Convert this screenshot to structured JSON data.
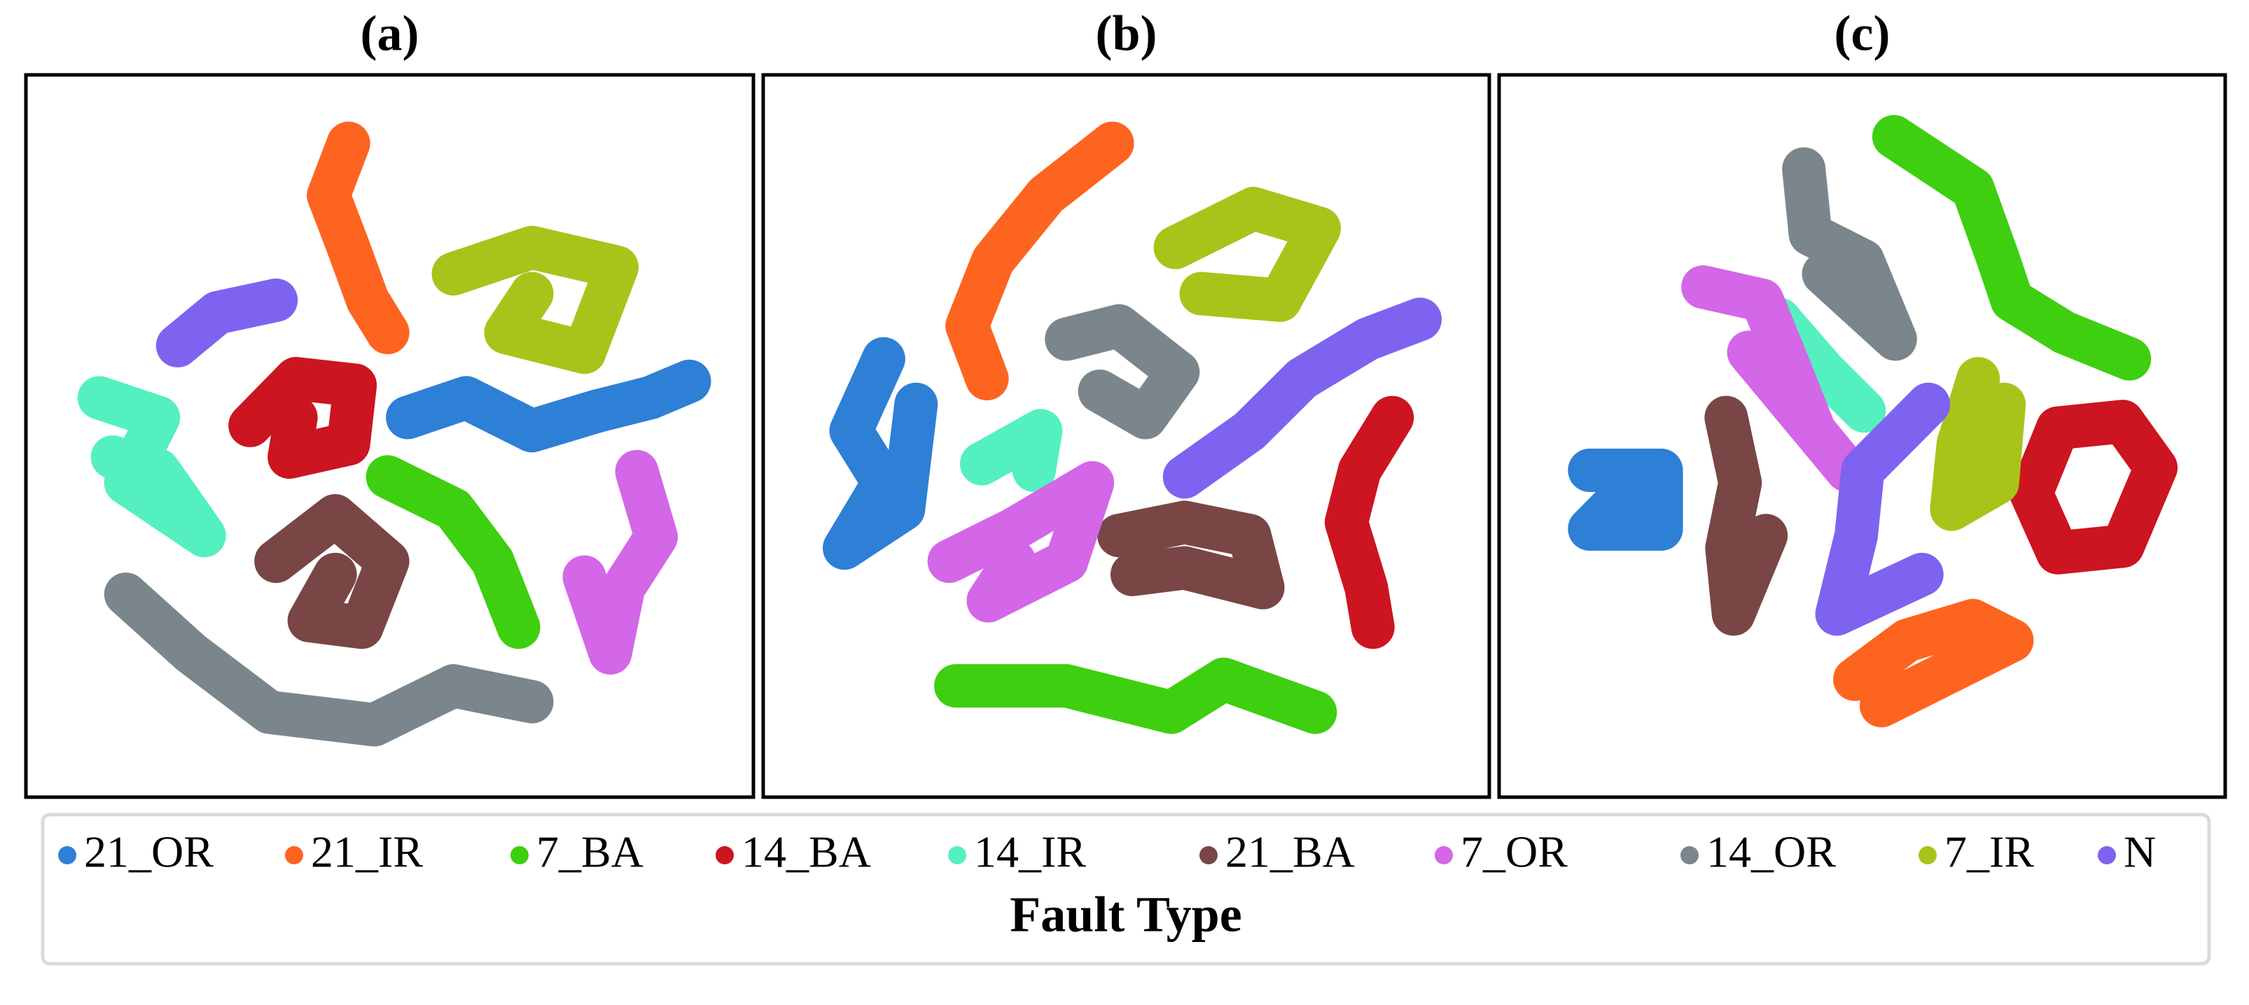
{
  "legend_title": "Fault Type",
  "chart_data": [
    {
      "type": "scatter",
      "title": "(a)",
      "xlim": [
        0,
        100
      ],
      "ylim": [
        0,
        100
      ],
      "series": [
        {
          "name": "21_OR",
          "color": "#2e7fd6",
          "x": [
            52.7,
            61.5,
            71.4,
            81.3,
            89.2,
            95.1
          ],
          "y": [
            52.8,
            55.8,
            50.8,
            53.8,
            55.8,
            58.3
          ]
        },
        {
          "name": "21_IR",
          "color": "#fd6420",
          "x": [
            43.8,
            40.8,
            43.8,
            46.7,
            49.7
          ],
          "y": [
            94.4,
            86.5,
            78.6,
            70.6,
            65.7
          ]
        },
        {
          "name": "7_BA",
          "color": "#3ecf10",
          "x": [
            49.7,
            59.6,
            65.5,
            69.4
          ],
          "y": [
            43.8,
            38.9,
            31.0,
            21.0
          ]
        },
        {
          "name": "14_BA",
          "color": "#cc1520",
          "x": [
            29.0,
            35.9,
            44.8,
            43.8,
            34.9,
            35.9
          ],
          "y": [
            51.6,
            58.7,
            57.7,
            48.8,
            46.8,
            52.8
          ]
        },
        {
          "name": "14_IR",
          "color": "#55f0c0",
          "x": [
            6.3,
            15.2,
            10.3,
            22.1,
            15.2,
            8.3
          ],
          "y": [
            55.8,
            52.8,
            42.9,
            34.9,
            44.8,
            46.8
          ]
        },
        {
          "name": "21_BA",
          "color": "#7a4545",
          "x": [
            32.9,
            41.8,
            49.7,
            45.8,
            37.9,
            41.8
          ],
          "y": [
            31.0,
            37.9,
            31.0,
            21.0,
            22.0,
            29.0
          ]
        },
        {
          "name": "7_OR",
          "color": "#d466e8",
          "x": [
            87.2,
            90.1,
            85.2,
            83.2,
            79.3
          ],
          "y": [
            44.6,
            34.7,
            27.0,
            17.1,
            28.6
          ]
        },
        {
          "name": "14_OR",
          "color": "#7b868c",
          "x": [
            10.3,
            20.1,
            31.9,
            47.7,
            59.6,
            71.4
          ],
          "y": [
            26.0,
            17.1,
            8.1,
            6.2,
            12.1,
            9.7
          ]
        },
        {
          "name": "7_IR",
          "color": "#a8c41a",
          "x": [
            59.6,
            71.4,
            84.2,
            79.3,
            67.5,
            71.4
          ],
          "y": [
            74.6,
            78.6,
            75.6,
            62.7,
            65.7,
            71.6
          ]
        },
        {
          "name": "N",
          "color": "#7e63f0",
          "x": [
            18.1,
            24.1,
            32.9
          ],
          "y": [
            63.7,
            68.7,
            70.6
          ]
        }
      ]
    },
    {
      "type": "scatter",
      "title": "(b)",
      "xlim": [
        0,
        100
      ],
      "ylim": [
        0,
        100
      ],
      "series": [
        {
          "name": "21_OR",
          "color": "#2e7fd6",
          "x": [
            13.4,
            8.5,
            13.4,
            7.5,
            16.4,
            18.3
          ],
          "y": [
            61.7,
            50.8,
            42.9,
            33.0,
            38.9,
            54.8
          ]
        },
        {
          "name": "21_IR",
          "color": "#fd6420",
          "x": [
            47.9,
            37.9,
            29.9,
            26.0,
            29.0
          ],
          "y": [
            94.4,
            86.5,
            76.6,
            66.7,
            58.7
          ]
        },
        {
          "name": "7_BA",
          "color": "#3ecf10",
          "x": [
            24.3,
            41.0,
            56.8,
            64.7,
            78.5
          ],
          "y": [
            12.1,
            12.1,
            8.1,
            13.1,
            8.1
          ]
        },
        {
          "name": "14_BA",
          "color": "#cc1520",
          "x": [
            90.1,
            85.2,
            83.2,
            86.2,
            87.2
          ],
          "y": [
            52.8,
            44.8,
            36.9,
            27.0,
            21.0
          ]
        },
        {
          "name": "14_IR",
          "color": "#55f0c0",
          "x": [
            28.2,
            37.1,
            36.1
          ],
          "y": [
            45.8,
            50.8,
            44.8
          ]
        },
        {
          "name": "21_BA",
          "color": "#7a4545",
          "x": [
            48.9,
            58.8,
            68.6,
            70.6,
            58.8,
            50.9
          ],
          "y": [
            34.9,
            36.9,
            34.9,
            27.0,
            30.0,
            29.0
          ]
        },
        {
          "name": "7_OR",
          "color": "#d466e8",
          "x": [
            23.3,
            33.1,
            44.9,
            41.0,
            29.2,
            33.1
          ],
          "y": [
            31.0,
            35.9,
            42.9,
            31.0,
            25.0,
            31.0
          ]
        },
        {
          "name": "14_OR",
          "color": "#7b868c",
          "x": [
            41.0,
            48.9,
            57.8,
            52.9,
            46.0
          ],
          "y": [
            64.7,
            66.7,
            59.7,
            52.8,
            56.8
          ]
        },
        {
          "name": "7_IR",
          "color": "#a8c41a",
          "x": [
            57.4,
            69.2,
            79.1,
            73.2,
            61.3
          ],
          "y": [
            78.6,
            84.5,
            81.5,
            70.6,
            71.6
          ]
        },
        {
          "name": "N",
          "color": "#7e63f0",
          "x": [
            58.8,
            68.6,
            76.5,
            86.4,
            94.3
          ],
          "y": [
            43.8,
            50.8,
            58.7,
            64.7,
            67.7
          ]
        }
      ]
    },
    {
      "type": "scatter",
      "title": "(c)",
      "xlim": [
        0,
        100
      ],
      "ylim": [
        0,
        100
      ],
      "series": [
        {
          "name": "21_OR",
          "color": "#2e7fd6",
          "x": [
            8.9,
            19.7,
            19.7,
            8.9,
            14.2
          ],
          "y": [
            44.8,
            44.8,
            35.9,
            35.9,
            41.3
          ]
        },
        {
          "name": "21_IR",
          "color": "#fd6420",
          "x": [
            48.9,
            56.8,
            66.7,
            72.6,
            52.9
          ],
          "y": [
            13.1,
            19.0,
            22.0,
            19.0,
            9.1
          ]
        },
        {
          "name": "7_BA",
          "color": "#3ecf10",
          "x": [
            54.8,
            66.7,
            70.6,
            72.6,
            80.5,
            90.3
          ],
          "y": [
            95.4,
            87.5,
            76.6,
            70.6,
            65.7,
            61.7
          ]
        },
        {
          "name": "14_BA",
          "color": "#cc1520",
          "x": [
            75.5,
            79.5,
            89.3,
            94.3,
            89.3,
            79.5,
            75.5
          ],
          "y": [
            41.3,
            51.2,
            52.2,
            45.2,
            33.3,
            32.3,
            41.3
          ]
        },
        {
          "name": "14_IR",
          "color": "#55f0c0",
          "x": [
            37.5,
            44.4,
            50.3
          ],
          "y": [
            67.7,
            59.7,
            53.8
          ]
        },
        {
          "name": "21_BA",
          "color": "#7a4545",
          "x": [
            29.5,
            31.6,
            29.6,
            30.6,
            35.5
          ],
          "y": [
            52.8,
            42.9,
            33.0,
            23.0,
            34.9
          ]
        },
        {
          "name": "7_OR",
          "color": "#d466e8",
          "x": [
            26.0,
            34.9,
            38.9,
            42.8,
            47.7,
            32.9
          ],
          "y": [
            72.6,
            70.6,
            60.7,
            50.8,
            44.8,
            62.7
          ]
        },
        {
          "name": "14_OR",
          "color": "#7b868c",
          "x": [
            41.2,
            42.2,
            50.1,
            55.0,
            44.2
          ],
          "y": [
            90.5,
            80.6,
            76.6,
            64.7,
            74.6
          ]
        },
        {
          "name": "7_IR",
          "color": "#a8c41a",
          "x": [
            67.5,
            64.5,
            63.5,
            70.4,
            71.4
          ],
          "y": [
            58.7,
            48.8,
            38.9,
            42.9,
            54.8
          ]
        },
        {
          "name": "N",
          "color": "#7e63f0",
          "x": [
            60.0,
            50.1,
            49.1,
            46.2,
            59.0
          ],
          "y": [
            54.8,
            44.8,
            34.9,
            23.0,
            29.0
          ]
        }
      ]
    }
  ]
}
